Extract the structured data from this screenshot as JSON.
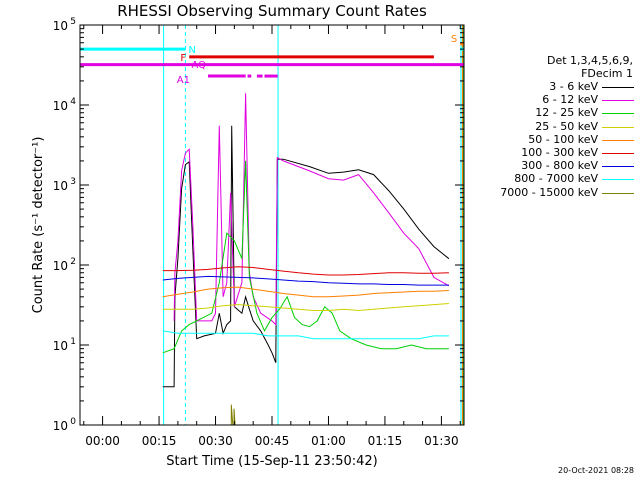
{
  "chart_data": {
    "type": "line",
    "title": "RHESSI Observing Summary Count Rates",
    "xlabel": "Start Time (15-Sep-11 23:50:42)",
    "ylabel": "Count Rate (s⁻¹ detector⁻¹)",
    "yscale": "log",
    "ylim": [
      1,
      100000
    ],
    "xlim_minutes": [
      -6,
      96
    ],
    "x_tick_labels": [
      "00:00",
      "00:15",
      "00:30",
      "00:45",
      "01:00",
      "01:15",
      "01:30"
    ],
    "y_tick_labels": [
      {
        "base": "10",
        "exp": "0"
      },
      {
        "base": "10",
        "exp": "1"
      },
      {
        "base": "10",
        "exp": "2"
      },
      {
        "base": "10",
        "exp": "3"
      },
      {
        "base": "10",
        "exp": "4"
      },
      {
        "base": "10",
        "exp": "5"
      }
    ],
    "legend_header": [
      "Det 1,3,4,5,6,9,",
      "FDecim 1"
    ],
    "legend_position": "right",
    "series": [
      {
        "name": "3 - 6 keV",
        "color": "#000000",
        "points": [
          [
            16,
            3
          ],
          [
            17,
            3
          ],
          [
            18,
            3
          ],
          [
            19,
            3
          ],
          [
            19.2,
            40
          ],
          [
            20,
            120
          ],
          [
            21,
            900
          ],
          [
            22,
            1800
          ],
          [
            23,
            1950
          ],
          [
            24,
            150
          ],
          [
            25,
            12
          ],
          [
            27,
            13
          ],
          [
            30,
            14
          ],
          [
            31,
            25
          ],
          [
            32,
            14
          ],
          [
            33,
            18
          ],
          [
            34,
            20
          ],
          [
            34.3,
            5500
          ],
          [
            35,
            30
          ],
          [
            37,
            25
          ],
          [
            38,
            40
          ],
          [
            39,
            28
          ],
          [
            40,
            20
          ],
          [
            42,
            15
          ],
          [
            44,
            10
          ],
          [
            45,
            8
          ],
          [
            46,
            6
          ],
          [
            46.4,
            2100
          ],
          [
            48,
            2100
          ],
          [
            55,
            1700
          ],
          [
            60,
            1400
          ],
          [
            64,
            1450
          ],
          [
            68,
            1550
          ],
          [
            72,
            1350
          ],
          [
            76,
            850
          ],
          [
            80,
            500
          ],
          [
            84,
            280
          ],
          [
            88,
            170
          ],
          [
            92,
            120
          ]
        ]
      },
      {
        "name": "6 - 12 keV",
        "color": "#e000e0",
        "points": [
          [
            19,
            20
          ],
          [
            19.2,
            80
          ],
          [
            20,
            200
          ],
          [
            21,
            1500
          ],
          [
            22,
            2500
          ],
          [
            23,
            2800
          ],
          [
            24,
            300
          ],
          [
            25,
            20
          ],
          [
            29,
            20
          ],
          [
            30,
            25
          ],
          [
            31,
            5500
          ],
          [
            32,
            40
          ],
          [
            33,
            60
          ],
          [
            34,
            800
          ],
          [
            35,
            30
          ],
          [
            37,
            60
          ],
          [
            38,
            14000
          ],
          [
            39,
            80
          ],
          [
            40,
            40
          ],
          [
            42,
            25
          ],
          [
            45,
            20
          ],
          [
            46,
            18
          ],
          [
            46.4,
            2200
          ],
          [
            48,
            2000
          ],
          [
            55,
            1500
          ],
          [
            60,
            1200
          ],
          [
            64,
            1150
          ],
          [
            68,
            1350
          ],
          [
            72,
            800
          ],
          [
            76,
            450
          ],
          [
            80,
            250
          ],
          [
            84,
            160
          ],
          [
            88,
            70
          ],
          [
            92,
            55
          ]
        ]
      },
      {
        "name": "12 - 25 keV",
        "color": "#00d000",
        "points": [
          [
            16,
            8
          ],
          [
            19,
            9
          ],
          [
            21,
            15
          ],
          [
            23,
            18
          ],
          [
            25,
            20
          ],
          [
            29,
            25
          ],
          [
            31,
            60
          ],
          [
            33,
            250
          ],
          [
            35,
            200
          ],
          [
            37,
            120
          ],
          [
            38,
            2000
          ],
          [
            39,
            70
          ],
          [
            41,
            25
          ],
          [
            43,
            15
          ],
          [
            45,
            22
          ],
          [
            47,
            28
          ],
          [
            49,
            40
          ],
          [
            51,
            22
          ],
          [
            53,
            18
          ],
          [
            55,
            17
          ],
          [
            57,
            20
          ],
          [
            59,
            30
          ],
          [
            61,
            25
          ],
          [
            63,
            15
          ],
          [
            66,
            12
          ],
          [
            70,
            10
          ],
          [
            74,
            9
          ],
          [
            78,
            9
          ],
          [
            82,
            10
          ],
          [
            86,
            9
          ],
          [
            92,
            9
          ]
        ]
      },
      {
        "name": "25 - 50 keV",
        "color": "#d0d000",
        "points": [
          [
            16,
            28
          ],
          [
            20,
            28
          ],
          [
            24,
            28
          ],
          [
            28,
            29
          ],
          [
            32,
            31
          ],
          [
            36,
            32
          ],
          [
            40,
            31
          ],
          [
            44,
            30
          ],
          [
            48,
            29
          ],
          [
            52,
            28
          ],
          [
            56,
            27
          ],
          [
            60,
            27
          ],
          [
            64,
            28
          ],
          [
            68,
            27
          ],
          [
            72,
            28
          ],
          [
            76,
            29
          ],
          [
            80,
            30
          ],
          [
            84,
            31
          ],
          [
            88,
            32
          ],
          [
            92,
            33
          ]
        ]
      },
      {
        "name": "50 - 100 keV",
        "color": "#ff8000",
        "points": [
          [
            16,
            40
          ],
          [
            20,
            43
          ],
          [
            24,
            46
          ],
          [
            28,
            50
          ],
          [
            32,
            52
          ],
          [
            36,
            53
          ],
          [
            40,
            50
          ],
          [
            44,
            47
          ],
          [
            48,
            44
          ],
          [
            52,
            42
          ],
          [
            56,
            40
          ],
          [
            60,
            40
          ],
          [
            64,
            41
          ],
          [
            68,
            42
          ],
          [
            72,
            44
          ],
          [
            76,
            45
          ],
          [
            80,
            46
          ],
          [
            84,
            47
          ],
          [
            88,
            47
          ],
          [
            92,
            48
          ]
        ]
      },
      {
        "name": "100 - 300 keV",
        "color": "#e00000",
        "points": [
          [
            16,
            85
          ],
          [
            20,
            85
          ],
          [
            24,
            86
          ],
          [
            28,
            88
          ],
          [
            32,
            92
          ],
          [
            36,
            95
          ],
          [
            40,
            93
          ],
          [
            44,
            88
          ],
          [
            48,
            84
          ],
          [
            52,
            80
          ],
          [
            56,
            77
          ],
          [
            60,
            75
          ],
          [
            64,
            75
          ],
          [
            68,
            76
          ],
          [
            72,
            78
          ],
          [
            76,
            80
          ],
          [
            80,
            80
          ],
          [
            84,
            79
          ],
          [
            88,
            79
          ],
          [
            92,
            80
          ]
        ]
      },
      {
        "name": "300 - 800 keV",
        "color": "#0000e0",
        "points": [
          [
            16,
            65
          ],
          [
            20,
            68
          ],
          [
            24,
            70
          ],
          [
            28,
            72
          ],
          [
            32,
            71
          ],
          [
            36,
            70
          ],
          [
            40,
            69
          ],
          [
            44,
            67
          ],
          [
            48,
            65
          ],
          [
            52,
            63
          ],
          [
            56,
            62
          ],
          [
            60,
            60
          ],
          [
            64,
            59
          ],
          [
            68,
            58
          ],
          [
            72,
            58
          ],
          [
            76,
            57
          ],
          [
            80,
            57
          ],
          [
            84,
            56
          ],
          [
            88,
            56
          ],
          [
            92,
            56
          ]
        ]
      },
      {
        "name": "800 - 7000 keV",
        "color": "#00ffff",
        "points": [
          [
            16,
            15
          ],
          [
            20,
            14
          ],
          [
            24,
            14
          ],
          [
            28,
            14
          ],
          [
            32,
            14
          ],
          [
            36,
            14
          ],
          [
            40,
            14
          ],
          [
            44,
            13
          ],
          [
            48,
            13
          ],
          [
            52,
            13
          ],
          [
            56,
            12
          ],
          [
            60,
            12
          ],
          [
            64,
            12
          ],
          [
            68,
            12
          ],
          [
            72,
            12
          ],
          [
            76,
            12
          ],
          [
            80,
            12
          ],
          [
            84,
            12
          ],
          [
            88,
            13
          ],
          [
            92,
            13
          ]
        ]
      },
      {
        "name": "7000 - 15000 keV",
        "color": "#808000",
        "points": [
          [
            34.2,
            1
          ],
          [
            34.2,
            1.8
          ],
          [
            34.6,
            1
          ],
          [
            34.9,
            1
          ],
          [
            34.9,
            1.6
          ],
          [
            35.2,
            1
          ]
        ]
      }
    ],
    "bars": [
      {
        "label": "N",
        "color": "#00ffff",
        "y": 50000,
        "ranges": [
          [
            -6,
            22
          ]
        ]
      },
      {
        "label": "N",
        "color": "#00ffff",
        "y": 50000,
        "ranges": [
          [
            95,
            96
          ]
        ]
      },
      {
        "label": "S",
        "color": "#ff8000",
        "y": 58000,
        "ranges": [
          [
            95,
            120
          ]
        ]
      },
      {
        "label": "F",
        "color": "#e00000",
        "y": 40000,
        "ranges": [
          [
            23,
            88
          ]
        ]
      },
      {
        "label": "",
        "color": "#e000e0",
        "y": 32000,
        "ranges": [
          [
            -6,
            120
          ]
        ]
      },
      {
        "label": "AQ",
        "color": "#e000e0",
        "y": 23000,
        "ranges": [
          [
            28,
            38
          ],
          [
            38.5,
            39.5
          ],
          [
            41,
            42.5
          ],
          [
            43,
            46.5
          ]
        ]
      },
      {
        "label": "A1",
        "color": "#e000e0",
        "y": 23000,
        "ranges": []
      }
    ],
    "vlines": [
      {
        "x": 16.2,
        "color": "#00ffff",
        "style": "solid"
      },
      {
        "x": 22,
        "color": "#00ffff",
        "style": "dashed"
      },
      {
        "x": 46.6,
        "color": "#00ffff",
        "style": "solid"
      },
      {
        "x": 95.2,
        "color": "#00ffff",
        "style": "solid"
      },
      {
        "x": 95.6,
        "color": "#ff8000",
        "style": "solid"
      },
      {
        "x": 95.9,
        "color": "#00d000",
        "style": "solid"
      }
    ]
  },
  "footer": {
    "timestamp": "20-Oct-2021 08:28"
  }
}
